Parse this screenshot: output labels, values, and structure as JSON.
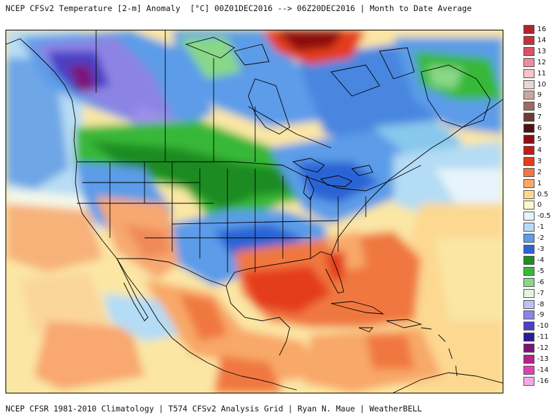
{
  "title": "NCEP CFSv2 Temperature [2-m] Anomaly  [°C] 00Z01DEC2016 --> 06Z20DEC2016 | Month to Date Average",
  "footer": "NCEP CFSR 1981-2010 Climatology | T574 CFSv2 Analysis Grid | Ryan N. Maue | WeatherBELL",
  "map": {
    "region": "North America",
    "variable": "2-m temperature anomaly"
  },
  "legend": {
    "entries": [
      {
        "label": "16",
        "color": "#b0242a"
      },
      {
        "label": "14",
        "color": "#c8303c"
      },
      {
        "label": "13",
        "color": "#dc5068"
      },
      {
        "label": "12",
        "color": "#ec8c9c"
      },
      {
        "label": "11",
        "color": "#f4c4cc"
      },
      {
        "label": "10",
        "color": "#e8d8d4"
      },
      {
        "label": "9",
        "color": "#c8a89c"
      },
      {
        "label": "8",
        "color": "#9c6c64"
      },
      {
        "label": "7",
        "color": "#6c3c38"
      },
      {
        "label": "6",
        "color": "#501010"
      },
      {
        "label": "5",
        "color": "#8c1010"
      },
      {
        "label": "4",
        "color": "#c81818"
      },
      {
        "label": "3",
        "color": "#e43c1c"
      },
      {
        "label": "2",
        "color": "#f07840"
      },
      {
        "label": "1",
        "color": "#f8a868"
      },
      {
        "label": "0.5",
        "color": "#fcd890"
      },
      {
        "label": "0",
        "color": "#fcf8c8"
      },
      {
        "label": "-0.5",
        "color": "#e8f4fc"
      },
      {
        "label": "-1",
        "color": "#b4dcf4"
      },
      {
        "label": "-2",
        "color": "#5c9ce8"
      },
      {
        "label": "-3",
        "color": "#2c64d4"
      },
      {
        "label": "-4",
        "color": "#1c8c24"
      },
      {
        "label": "-5",
        "color": "#38b838"
      },
      {
        "label": "-6",
        "color": "#88d888"
      },
      {
        "label": "-7",
        "color": "#e4f4e4"
      },
      {
        "label": "-8",
        "color": "#c0c0f4"
      },
      {
        "label": "-9",
        "color": "#8c84e4"
      },
      {
        "label": "-10",
        "color": "#4c40c4"
      },
      {
        "label": "-11",
        "color": "#2c1898"
      },
      {
        "label": "-12",
        "color": "#7c1478"
      },
      {
        "label": "-13",
        "color": "#b4208c"
      },
      {
        "label": "-14",
        "color": "#e040b4"
      },
      {
        "label": "-16",
        "color": "#f8a8e8"
      }
    ]
  }
}
